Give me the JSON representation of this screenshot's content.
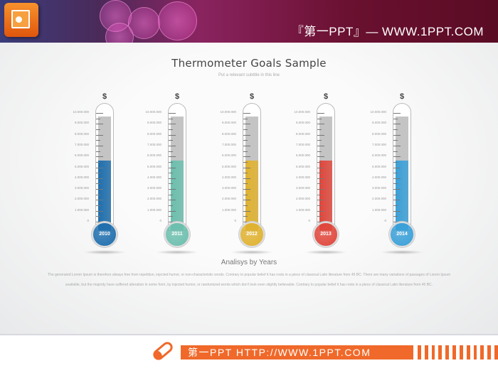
{
  "header": {
    "title": "『第一PPT』— WWW.1PPT.COM",
    "logo_icon": "powerpoint-icon"
  },
  "slide": {
    "title": "Thermometer Goals Sample",
    "subtitle": "Put a relevant subtitle in this line",
    "section_title": "Analisys by Years",
    "body_lines": [
      "The generated Lorem Ipsum is therefore always free from repetition, injected humor, or non-characteristic words. Contrary to popular belief it has roots in a piece of classical Latin literature from 45 BC. There are many variations of passages of Lorem Ipsum",
      "available, but the majority have suffered alteration in some form, by injected humor, or randomized words which don't look even slightly believable. Contrary to popular belief it has roots in a piece of classical Latin literature from 45 BC."
    ]
  },
  "chart_data": {
    "type": "thermometer",
    "title": "Thermometer Goals Sample",
    "scale_labels": [
      "10.000.000",
      "9.000.000",
      "8.000.000",
      "7.000.000",
      "6.000.000",
      "5.000.000",
      "4.000.000",
      "3.000.000",
      "2.000.000",
      "1.000.000",
      "0"
    ],
    "ylim": [
      0,
      10000000
    ],
    "unit_symbol": "$",
    "thermometers": [
      {
        "label": "2010",
        "value": 5600000,
        "goal": 9700000,
        "color": "#1f6fae"
      },
      {
        "label": "2011",
        "value": 5600000,
        "goal": 9700000,
        "color": "#6cbfae"
      },
      {
        "label": "2012",
        "value": 5600000,
        "goal": 9700000,
        "color": "#e0b230"
      },
      {
        "label": "2013",
        "value": 5600000,
        "goal": 9700000,
        "color": "#e0473c"
      },
      {
        "label": "2014",
        "value": 5600000,
        "goal": 9700000,
        "color": "#3aa0d8"
      }
    ]
  },
  "footer": {
    "text": "第一PPT HTTP://WWW.1PPT.COM",
    "pen_icon": "pen-icon"
  }
}
